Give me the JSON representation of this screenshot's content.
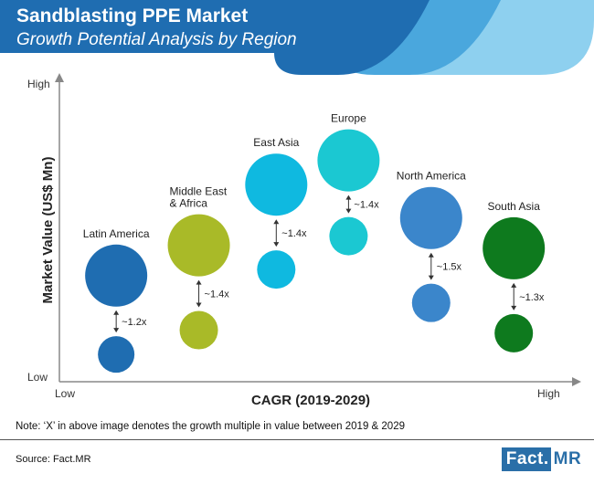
{
  "header": {
    "title": "Sandblasting PPE Market",
    "subtitle": "Growth Potential Analysis by Region"
  },
  "colors": {
    "header_dark": "#1f6db1",
    "header_mid": "#4aa7dd",
    "header_light": "#8ed0ef"
  },
  "chart_data": {
    "type": "bubble",
    "title": "Sandblasting PPE Market",
    "subtitle": "Growth Potential Analysis by Region",
    "xlabel": "CAGR (2019-2029)",
    "ylabel": "Market Value (US$ Mn)",
    "x_ticks": [
      "Low",
      "High"
    ],
    "y_ticks": [
      "Low",
      "High"
    ],
    "xlim": [
      0,
      100
    ],
    "ylim": [
      0,
      100
    ],
    "series": [
      {
        "name": "Latin America",
        "label": "Latin America",
        "color": "#1f6db1",
        "x": 11,
        "y_2029": 35,
        "y_2019": 9,
        "size_2029": 34,
        "size_2019": 20,
        "multiple": "~1.2x"
      },
      {
        "name": "Middle East & Africa",
        "label_lines": [
          "Middle East",
          "& Africa"
        ],
        "color": "#a9ba28",
        "x": 27,
        "y_2029": 45,
        "y_2019": 17,
        "size_2029": 34,
        "size_2019": 21,
        "multiple": "~1.4x"
      },
      {
        "name": "East Asia",
        "label": "East Asia",
        "color": "#0fb9e0",
        "x": 42,
        "y_2029": 65,
        "y_2019": 37,
        "size_2029": 34,
        "size_2019": 21,
        "multiple": "~1.4x"
      },
      {
        "name": "Europe",
        "label": "Europe",
        "color": "#1bc8d2",
        "x": 56,
        "y_2029": 73,
        "y_2019": 48,
        "size_2029": 34,
        "size_2019": 21,
        "multiple": "~1.4x"
      },
      {
        "name": "North America",
        "label": "North America",
        "color": "#3b86cb",
        "x": 72,
        "y_2029": 54,
        "y_2019": 26,
        "size_2029": 34,
        "size_2019": 21,
        "multiple": "~1.5x"
      },
      {
        "name": "South Asia",
        "label": "South Asia",
        "color": "#0e7a1e",
        "x": 88,
        "y_2029": 44,
        "y_2019": 16,
        "size_2029": 34,
        "size_2019": 21,
        "multiple": "~1.3x"
      }
    ]
  },
  "note": "Note: ‘X’ in above image denotes the growth multiple in value between 2019 & 2029",
  "source": "Source: Fact.MR",
  "brand": {
    "part1": "Fact.",
    "part2": "MR"
  }
}
